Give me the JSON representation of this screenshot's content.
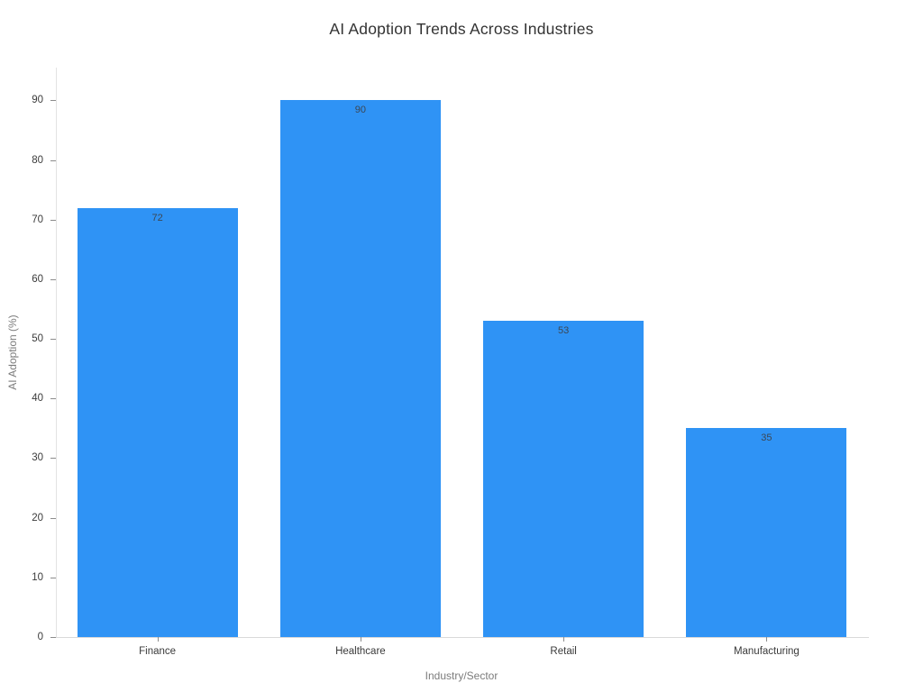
{
  "chart_data": {
    "type": "bar",
    "title": "AI Adoption Trends Across Industries",
    "xlabel": "Industry/Sector",
    "ylabel": "AI Adoption (%)",
    "categories": [
      "Finance",
      "Healthcare",
      "Retail",
      "Manufacturing"
    ],
    "values": [
      72,
      90,
      53,
      35
    ],
    "value_labels": [
      "72",
      "90",
      "53",
      "35"
    ],
    "yticks": [
      0,
      10,
      20,
      30,
      40,
      50,
      60,
      70,
      80,
      90
    ],
    "ylim": [
      0,
      95.5
    ],
    "grid": false,
    "legend": null,
    "bar_color": "#2F93F5",
    "value_label_color": "#3c4754",
    "axis_line_color": "#e0e0e0",
    "tick_label_color": "#3b3b3b",
    "axis_title_color": "#7c7c7c",
    "title_color": "#333333",
    "background_color": "#ffffff"
  }
}
